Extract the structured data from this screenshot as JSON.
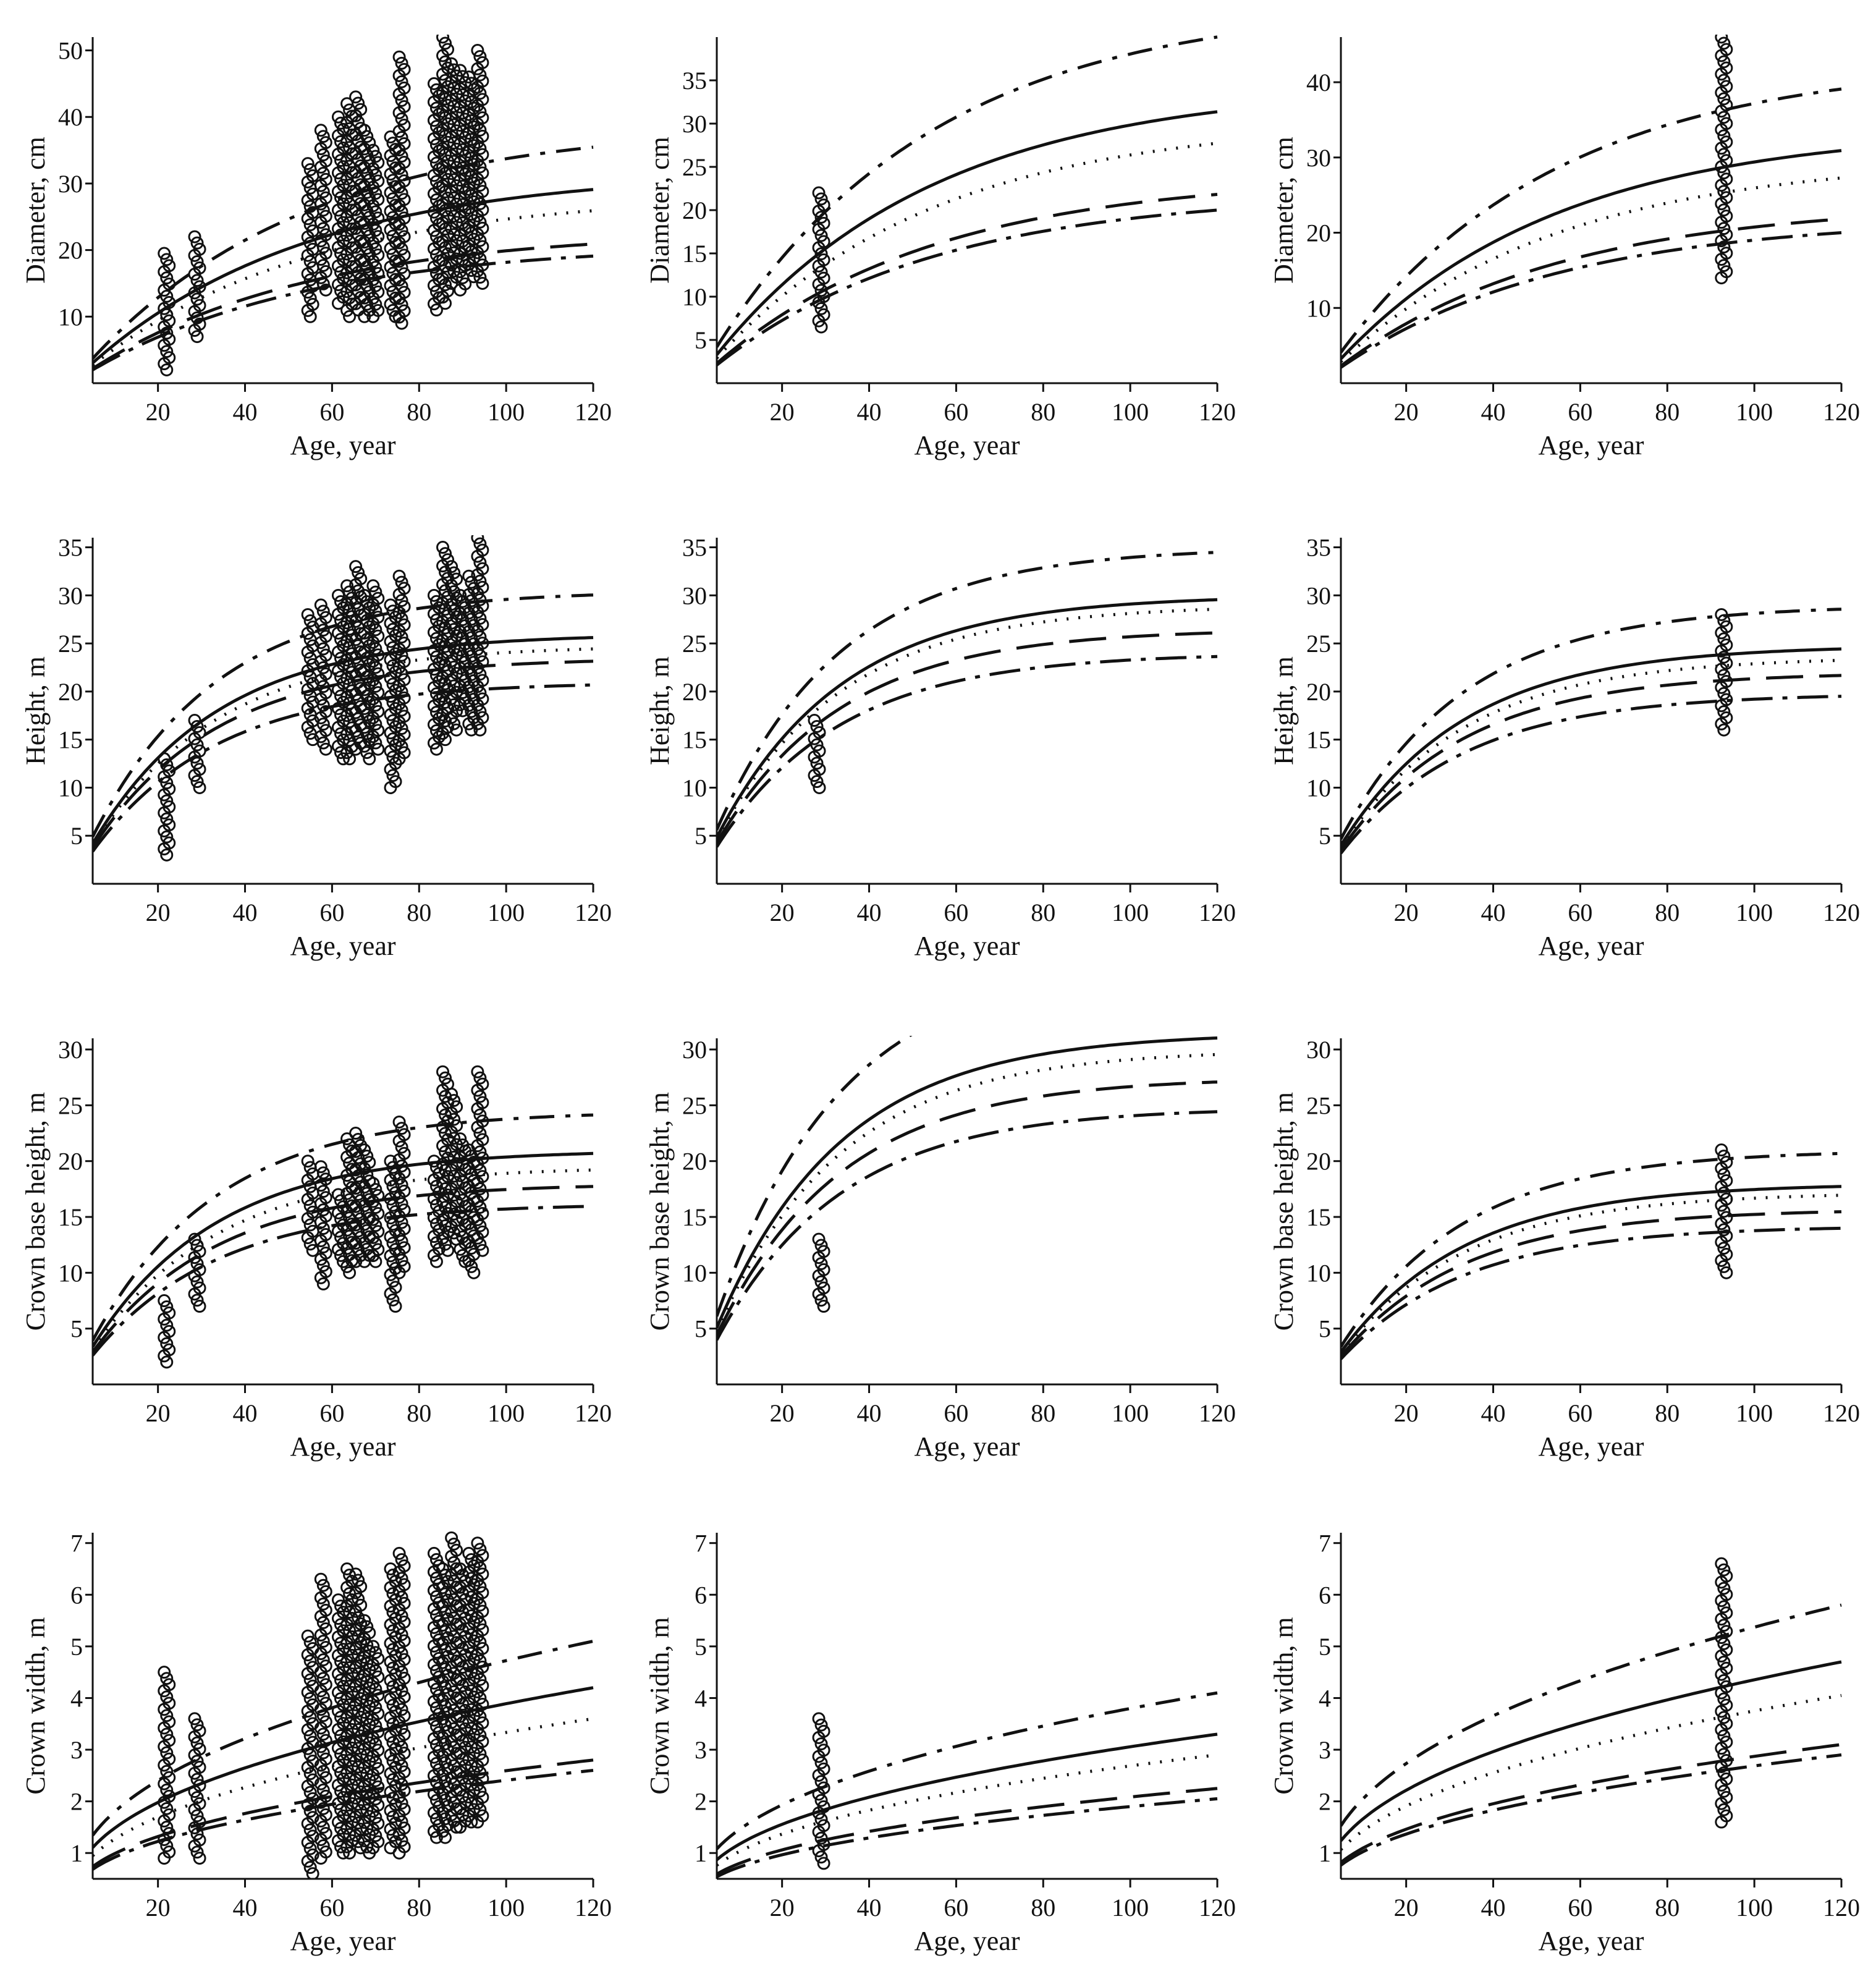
{
  "figure": {
    "colors": {
      "ink": "#111111",
      "background": "#ffffff"
    },
    "x_ticks": [
      20,
      40,
      60,
      80,
      100,
      120
    ]
  },
  "chart_data": [
    {
      "type": "line",
      "row": 0,
      "col": 0,
      "xlabel": "Age, year",
      "ylabel": "Diameter, cm",
      "xlim": [
        5,
        120
      ],
      "ylim": [
        0,
        52
      ],
      "yticks": [
        10,
        20,
        30,
        40,
        50
      ],
      "asym": [
        23,
        21,
        28.5,
        32,
        39
      ],
      "k": 0.02,
      "observations": [
        [
          22,
          2,
          19.5
        ],
        [
          29,
          7,
          22
        ],
        [
          55,
          10,
          33
        ],
        [
          58,
          14,
          38
        ],
        [
          62,
          12,
          40
        ],
        [
          64,
          10,
          42
        ],
        [
          66,
          11,
          43
        ],
        [
          68,
          10,
          38
        ],
        [
          70,
          10,
          35
        ],
        [
          74,
          10,
          37
        ],
        [
          76,
          9,
          49
        ],
        [
          84,
          11,
          45
        ],
        [
          86,
          12,
          52
        ],
        [
          88,
          15,
          48
        ],
        [
          90,
          14,
          47
        ],
        [
          92,
          16,
          46
        ],
        [
          94,
          15,
          50
        ]
      ]
    },
    {
      "type": "line",
      "row": 0,
      "col": 1,
      "xlabel": "Age, year",
      "ylabel": "Diameter, cm",
      "xlim": [
        5,
        120
      ],
      "ylim": [
        0,
        40
      ],
      "yticks": [
        5,
        10,
        15,
        20,
        25,
        30,
        35
      ],
      "asym": [
        24,
        22,
        30.5,
        34.5,
        44
      ],
      "k": 0.02,
      "observations": [
        [
          29,
          6.5,
          22
        ]
      ]
    },
    {
      "type": "line",
      "row": 0,
      "col": 2,
      "xlabel": "Age, year",
      "ylabel": "Diameter, cm",
      "xlim": [
        5,
        120
      ],
      "ylim": [
        0,
        46
      ],
      "yticks": [
        10,
        20,
        30,
        40
      ],
      "asym": [
        24,
        22,
        30,
        34,
        43
      ],
      "k": 0.02,
      "observations": [
        [
          93,
          14,
          46
        ]
      ]
    },
    {
      "type": "line",
      "row": 1,
      "col": 0,
      "xlabel": "Age, year",
      "ylabel": "Height, m",
      "xlim": [
        5,
        120
      ],
      "ylim": [
        0,
        36
      ],
      "yticks": [
        5,
        10,
        15,
        20,
        25,
        30,
        35
      ],
      "asym": [
        23.5,
        21,
        24.8,
        26,
        30.5
      ],
      "k": 0.035,
      "observations": [
        [
          22,
          3,
          13
        ],
        [
          29,
          10,
          17
        ],
        [
          55,
          15,
          28
        ],
        [
          58,
          14,
          29
        ],
        [
          62,
          13,
          30
        ],
        [
          64,
          13,
          31
        ],
        [
          66,
          14,
          33
        ],
        [
          68,
          13,
          30
        ],
        [
          70,
          14,
          31
        ],
        [
          74,
          10,
          29
        ],
        [
          76,
          13,
          32
        ],
        [
          84,
          14,
          30
        ],
        [
          86,
          15,
          35
        ],
        [
          88,
          16,
          33
        ],
        [
          90,
          18,
          30
        ],
        [
          92,
          16,
          32
        ],
        [
          94,
          16,
          36
        ]
      ]
    },
    {
      "type": "line",
      "row": 1,
      "col": 1,
      "xlabel": "Age, year",
      "ylabel": "Height, m",
      "xlim": [
        5,
        120
      ],
      "ylim": [
        0,
        36
      ],
      "yticks": [
        5,
        10,
        15,
        20,
        25,
        30,
        35
      ],
      "asym": [
        26.5,
        24,
        29,
        30,
        35
      ],
      "k": 0.035,
      "observations": [
        [
          28,
          10,
          17
        ]
      ]
    },
    {
      "type": "line",
      "row": 1,
      "col": 2,
      "xlabel": "Age, year",
      "ylabel": "Height, m",
      "xlim": [
        5,
        120
      ],
      "ylim": [
        0,
        36
      ],
      "yticks": [
        5,
        10,
        15,
        20,
        25,
        30,
        35
      ],
      "asym": [
        22,
        19.8,
        23.6,
        24.8,
        29
      ],
      "k": 0.035,
      "observations": [
        [
          93,
          16,
          28
        ]
      ]
    },
    {
      "type": "line",
      "row": 2,
      "col": 0,
      "xlabel": "Age, year",
      "ylabel": "Crown base height, m",
      "xlim": [
        5,
        120
      ],
      "ylim": [
        0,
        31
      ],
      "yticks": [
        5,
        10,
        15,
        20,
        25,
        30
      ],
      "asym": [
        18,
        16.2,
        19.5,
        21,
        24.5
      ],
      "k": 0.035,
      "observations": [
        [
          22,
          2,
          7.5
        ],
        [
          29,
          7,
          13
        ],
        [
          55,
          12,
          20
        ],
        [
          58,
          9,
          19.5
        ],
        [
          62,
          11,
          17
        ],
        [
          64,
          10,
          22
        ],
        [
          66,
          11,
          22.5
        ],
        [
          68,
          11,
          21
        ],
        [
          70,
          11,
          18
        ],
        [
          74,
          7,
          20
        ],
        [
          76,
          10,
          23.5
        ],
        [
          84,
          11,
          20
        ],
        [
          86,
          12,
          28
        ],
        [
          88,
          13,
          26
        ],
        [
          90,
          11,
          22
        ],
        [
          92,
          10,
          21
        ],
        [
          94,
          12,
          28
        ]
      ]
    },
    {
      "type": "line",
      "row": 2,
      "col": 1,
      "xlabel": "Age, year",
      "ylabel": "Crown base height, m",
      "xlim": [
        5,
        120
      ],
      "ylim": [
        0,
        31
      ],
      "yticks": [
        5,
        10,
        15,
        20,
        25,
        30
      ],
      "asym": [
        27.5,
        24.8,
        30,
        31.5,
        38
      ],
      "k": 0.035,
      "observations": [
        [
          29,
          7,
          13
        ]
      ]
    },
    {
      "type": "line",
      "row": 2,
      "col": 2,
      "xlabel": "Age, year",
      "ylabel": "Crown base height, m",
      "xlim": [
        5,
        120
      ],
      "ylim": [
        0,
        31
      ],
      "yticks": [
        5,
        10,
        15,
        20,
        25,
        30
      ],
      "asym": [
        15.7,
        14.2,
        17.2,
        18,
        21
      ],
      "k": 0.035,
      "observations": [
        [
          93,
          10,
          21
        ]
      ]
    },
    {
      "type": "line",
      "row": 3,
      "col": 0,
      "xlabel": "Age, year",
      "ylabel": "Crown width, m",
      "xlim": [
        5,
        120
      ],
      "ylim": [
        0.5,
        7.2
      ],
      "yticks": [
        1,
        2,
        3,
        4,
        5,
        6,
        7
      ],
      "series_end": [
        2.8,
        2.6,
        3.6,
        4.2,
        5.1
      ],
      "observations": [
        [
          22,
          0.9,
          4.5
        ],
        [
          29,
          0.9,
          3.6
        ],
        [
          55,
          0.6,
          5.2
        ],
        [
          58,
          0.9,
          6.3
        ],
        [
          62,
          1.0,
          5.9
        ],
        [
          64,
          1.0,
          6.5
        ],
        [
          66,
          1.1,
          6.4
        ],
        [
          68,
          1.0,
          5.5
        ],
        [
          70,
          1.1,
          5.0
        ],
        [
          74,
          1.1,
          6.5
        ],
        [
          76,
          1.0,
          6.8
        ],
        [
          84,
          1.3,
          6.8
        ],
        [
          86,
          1.3,
          6.5
        ],
        [
          88,
          1.5,
          7.1
        ],
        [
          90,
          1.5,
          6.5
        ],
        [
          92,
          1.6,
          6.8
        ],
        [
          94,
          1.6,
          7.0
        ]
      ]
    },
    {
      "type": "line",
      "row": 3,
      "col": 1,
      "xlabel": "Age, year",
      "ylabel": "Crown width, m",
      "xlim": [
        5,
        120
      ],
      "ylim": [
        0.5,
        7.2
      ],
      "yticks": [
        1,
        2,
        3,
        4,
        5,
        6,
        7
      ],
      "series_end": [
        2.25,
        2.05,
        2.9,
        3.3,
        4.1
      ],
      "observations": [
        [
          29,
          0.8,
          3.6
        ]
      ]
    },
    {
      "type": "line",
      "row": 3,
      "col": 2,
      "xlabel": "Age, year",
      "ylabel": "Crown width, m",
      "xlim": [
        5,
        120
      ],
      "ylim": [
        0.5,
        7.2
      ],
      "yticks": [
        1,
        2,
        3,
        4,
        5,
        6,
        7
      ],
      "series_end": [
        3.1,
        2.9,
        4.05,
        4.7,
        5.8
      ],
      "observations": [
        [
          93,
          1.6,
          6.6
        ]
      ]
    }
  ]
}
